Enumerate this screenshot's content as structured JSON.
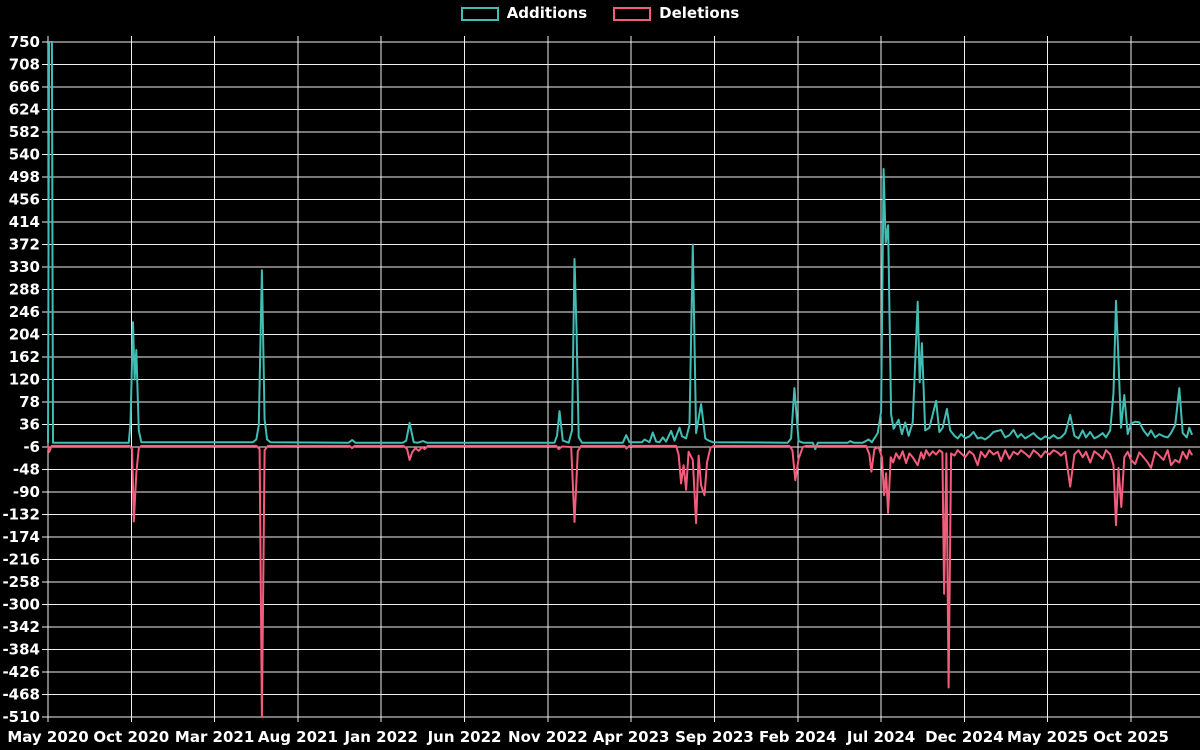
{
  "legend": {
    "additions_label": "Additions",
    "deletions_label": "Deletions"
  },
  "colors": {
    "background": "#000000",
    "grid": "#f0f0f0",
    "text": "#ffffff",
    "additions": "#41bdb4",
    "deletions": "#f45c7c"
  },
  "chart_data": {
    "type": "line",
    "title": "",
    "xlabel": "",
    "ylabel": "",
    "grid": true,
    "legend_position": "top-center",
    "x_axis": {
      "unit": "months since May 2020",
      "range": [
        0,
        69.1
      ],
      "tick_positions": [
        0,
        5,
        10,
        15,
        20,
        25,
        30,
        35,
        40,
        45,
        50,
        55,
        60,
        65
      ],
      "tick_labels": [
        "May 2020",
        "Oct 2020",
        "Mar 2021",
        "Aug 2021",
        "Jan 2022",
        "Jun 2022",
        "Nov 2022",
        "Apr 2023",
        "Sep 2023",
        "Feb 2024",
        "Jul 2024",
        "Dec 2024",
        "May 2025",
        "Oct 2025"
      ]
    },
    "y_axis": {
      "range": [
        -510,
        750
      ],
      "tick_step": 42,
      "ticks": [
        750,
        708,
        666,
        624,
        582,
        540,
        498,
        456,
        414,
        372,
        330,
        288,
        246,
        204,
        162,
        120,
        78,
        36,
        -6,
        -48,
        -90,
        -132,
        -174,
        -216,
        -258,
        -300,
        -342,
        -384,
        -426,
        -468,
        -510
      ]
    },
    "series": [
      {
        "name": "Additions",
        "color": "#41bdb4",
        "points": [
          [
            0,
            2
          ],
          [
            0.08,
            900
          ],
          [
            0.22,
            900
          ],
          [
            0.3,
            2
          ],
          [
            4.85,
            2
          ],
          [
            4.95,
            40
          ],
          [
            5.1,
            227
          ],
          [
            5.2,
            120
          ],
          [
            5.3,
            175
          ],
          [
            5.45,
            25
          ],
          [
            5.6,
            3
          ],
          [
            12.3,
            3
          ],
          [
            12.5,
            8
          ],
          [
            12.65,
            35
          ],
          [
            12.84,
            324
          ],
          [
            13.0,
            45
          ],
          [
            13.15,
            8
          ],
          [
            13.35,
            3
          ],
          [
            18.05,
            2
          ],
          [
            18.25,
            7
          ],
          [
            18.45,
            2
          ],
          [
            21.3,
            2
          ],
          [
            21.5,
            6
          ],
          [
            21.7,
            39
          ],
          [
            21.95,
            3
          ],
          [
            22.2,
            2
          ],
          [
            22.5,
            5
          ],
          [
            22.75,
            2
          ],
          [
            30.4,
            2
          ],
          [
            30.55,
            15
          ],
          [
            30.7,
            61
          ],
          [
            30.9,
            6
          ],
          [
            31.25,
            2
          ],
          [
            31.45,
            25
          ],
          [
            31.6,
            345
          ],
          [
            31.72,
            215
          ],
          [
            31.85,
            12
          ],
          [
            32.05,
            2
          ],
          [
            34.5,
            2
          ],
          [
            34.7,
            16
          ],
          [
            34.9,
            3
          ],
          [
            35.65,
            3
          ],
          [
            35.8,
            8
          ],
          [
            36.1,
            3
          ],
          [
            36.3,
            21
          ],
          [
            36.5,
            4
          ],
          [
            36.7,
            3
          ],
          [
            36.9,
            12
          ],
          [
            37.1,
            4
          ],
          [
            37.4,
            24
          ],
          [
            37.6,
            6
          ],
          [
            37.9,
            30
          ],
          [
            38.05,
            14
          ],
          [
            38.3,
            10
          ],
          [
            38.5,
            35
          ],
          [
            38.7,
            372
          ],
          [
            38.9,
            20
          ],
          [
            39.2,
            74
          ],
          [
            39.45,
            10
          ],
          [
            39.65,
            6
          ],
          [
            39.9,
            3
          ],
          [
            44.4,
            2
          ],
          [
            44.6,
            10
          ],
          [
            44.8,
            104
          ],
          [
            45.05,
            5
          ],
          [
            45.3,
            2
          ],
          [
            45.9,
            2
          ],
          [
            46.05,
            -10
          ],
          [
            46.2,
            2
          ],
          [
            48.0,
            2
          ],
          [
            48.15,
            5
          ],
          [
            48.35,
            2
          ],
          [
            48.9,
            2
          ],
          [
            49.25,
            8
          ],
          [
            49.45,
            3
          ],
          [
            49.8,
            20
          ],
          [
            50.0,
            60
          ],
          [
            50.15,
            513
          ],
          [
            50.28,
            375
          ],
          [
            50.42,
            408
          ],
          [
            50.6,
            55
          ],
          [
            50.75,
            28
          ],
          [
            51.05,
            45
          ],
          [
            51.25,
            18
          ],
          [
            51.45,
            40
          ],
          [
            51.65,
            15
          ],
          [
            51.9,
            40
          ],
          [
            52.2,
            265
          ],
          [
            52.32,
            115
          ],
          [
            52.45,
            188
          ],
          [
            52.65,
            25
          ],
          [
            52.9,
            30
          ],
          [
            53.3,
            80
          ],
          [
            53.5,
            22
          ],
          [
            53.7,
            30
          ],
          [
            53.95,
            65
          ],
          [
            54.15,
            25
          ],
          [
            54.4,
            15
          ],
          [
            54.6,
            10
          ],
          [
            54.8,
            18
          ],
          [
            55.05,
            10
          ],
          [
            55.3,
            14
          ],
          [
            55.55,
            22
          ],
          [
            55.8,
            10
          ],
          [
            56.0,
            12
          ],
          [
            56.25,
            8
          ],
          [
            56.5,
            14
          ],
          [
            56.75,
            22
          ],
          [
            57.0,
            24
          ],
          [
            57.2,
            26
          ],
          [
            57.45,
            12
          ],
          [
            57.7,
            16
          ],
          [
            57.95,
            26
          ],
          [
            58.2,
            12
          ],
          [
            58.4,
            18
          ],
          [
            58.65,
            10
          ],
          [
            58.9,
            15
          ],
          [
            59.15,
            20
          ],
          [
            59.4,
            12
          ],
          [
            59.6,
            8
          ],
          [
            59.85,
            14
          ],
          [
            60.1,
            10
          ],
          [
            60.35,
            16
          ],
          [
            60.6,
            10
          ],
          [
            60.8,
            12
          ],
          [
            61.05,
            20
          ],
          [
            61.35,
            54
          ],
          [
            61.6,
            15
          ],
          [
            61.85,
            10
          ],
          [
            62.1,
            25
          ],
          [
            62.3,
            12
          ],
          [
            62.55,
            22
          ],
          [
            62.8,
            10
          ],
          [
            63.05,
            14
          ],
          [
            63.3,
            20
          ],
          [
            63.5,
            12
          ],
          [
            63.75,
            25
          ],
          [
            63.95,
            95
          ],
          [
            64.1,
            267
          ],
          [
            64.22,
            180
          ],
          [
            64.4,
            30
          ],
          [
            64.6,
            91
          ],
          [
            64.8,
            18
          ],
          [
            65.0,
            38
          ],
          [
            65.25,
            41
          ],
          [
            65.5,
            40
          ],
          [
            65.75,
            25
          ],
          [
            66.0,
            15
          ],
          [
            66.2,
            25
          ],
          [
            66.45,
            12
          ],
          [
            66.7,
            18
          ],
          [
            66.95,
            14
          ],
          [
            67.2,
            12
          ],
          [
            67.4,
            20
          ],
          [
            67.65,
            35
          ],
          [
            67.9,
            104
          ],
          [
            68.1,
            20
          ],
          [
            68.35,
            12
          ],
          [
            68.5,
            30
          ],
          [
            68.65,
            18
          ]
        ]
      },
      {
        "name": "Deletions",
        "color": "#f45c7c",
        "points": [
          [
            0,
            -4
          ],
          [
            0.08,
            -15
          ],
          [
            0.22,
            -4
          ],
          [
            4.9,
            -4
          ],
          [
            5.05,
            -10
          ],
          [
            5.15,
            -145
          ],
          [
            5.3,
            -55
          ],
          [
            5.45,
            -8
          ],
          [
            5.6,
            -4
          ],
          [
            12.5,
            -4
          ],
          [
            12.7,
            -10
          ],
          [
            12.84,
            -510
          ],
          [
            13.0,
            -12
          ],
          [
            13.2,
            -4
          ],
          [
            18.1,
            -4
          ],
          [
            18.25,
            -8
          ],
          [
            18.4,
            -4
          ],
          [
            21.35,
            -4
          ],
          [
            21.55,
            -10
          ],
          [
            21.7,
            -30
          ],
          [
            21.85,
            -16
          ],
          [
            22.05,
            -8
          ],
          [
            22.25,
            -13
          ],
          [
            22.45,
            -6
          ],
          [
            22.6,
            -10
          ],
          [
            22.8,
            -4
          ],
          [
            30.5,
            -4
          ],
          [
            30.65,
            -10
          ],
          [
            30.85,
            -5
          ],
          [
            31.4,
            -6
          ],
          [
            31.6,
            -146
          ],
          [
            31.8,
            -14
          ],
          [
            32.0,
            -4
          ],
          [
            34.6,
            -4
          ],
          [
            34.72,
            -9
          ],
          [
            34.88,
            -4
          ],
          [
            37.7,
            -4
          ],
          [
            37.85,
            -20
          ],
          [
            38.0,
            -74
          ],
          [
            38.15,
            -40
          ],
          [
            38.3,
            -86
          ],
          [
            38.45,
            -15
          ],
          [
            38.7,
            -30
          ],
          [
            38.9,
            -148
          ],
          [
            39.05,
            -22
          ],
          [
            39.2,
            -78
          ],
          [
            39.4,
            -96
          ],
          [
            39.55,
            -35
          ],
          [
            39.75,
            -8
          ],
          [
            39.95,
            -4
          ],
          [
            44.5,
            -4
          ],
          [
            44.68,
            -12
          ],
          [
            44.85,
            -68
          ],
          [
            45.05,
            -28
          ],
          [
            45.3,
            -6
          ],
          [
            45.5,
            -4
          ],
          [
            49.1,
            -4
          ],
          [
            49.3,
            -20
          ],
          [
            49.42,
            -52
          ],
          [
            49.6,
            -10
          ],
          [
            49.85,
            -6
          ],
          [
            50.05,
            -25
          ],
          [
            50.18,
            -96
          ],
          [
            50.3,
            -55
          ],
          [
            50.42,
            -129
          ],
          [
            50.58,
            -25
          ],
          [
            50.72,
            -35
          ],
          [
            50.9,
            -18
          ],
          [
            51.1,
            -28
          ],
          [
            51.3,
            -14
          ],
          [
            51.5,
            -36
          ],
          [
            51.7,
            -18
          ],
          [
            51.9,
            -25
          ],
          [
            52.2,
            -40
          ],
          [
            52.4,
            -16
          ],
          [
            52.55,
            -28
          ],
          [
            52.7,
            -12
          ],
          [
            52.9,
            -22
          ],
          [
            53.1,
            -14
          ],
          [
            53.3,
            -20
          ],
          [
            53.5,
            -12
          ],
          [
            53.68,
            -16
          ],
          [
            53.78,
            -280
          ],
          [
            53.92,
            -18
          ],
          [
            54.05,
            -455
          ],
          [
            54.2,
            -18
          ],
          [
            54.4,
            -22
          ],
          [
            54.6,
            -12
          ],
          [
            54.8,
            -18
          ],
          [
            55.05,
            -25
          ],
          [
            55.3,
            -14
          ],
          [
            55.55,
            -20
          ],
          [
            55.8,
            -40
          ],
          [
            56.0,
            -15
          ],
          [
            56.25,
            -25
          ],
          [
            56.5,
            -12
          ],
          [
            56.75,
            -20
          ],
          [
            57.0,
            -15
          ],
          [
            57.2,
            -32
          ],
          [
            57.45,
            -12
          ],
          [
            57.7,
            -28
          ],
          [
            57.95,
            -15
          ],
          [
            58.2,
            -20
          ],
          [
            58.4,
            -12
          ],
          [
            58.65,
            -18
          ],
          [
            58.9,
            -25
          ],
          [
            59.15,
            -12
          ],
          [
            59.4,
            -18
          ],
          [
            59.6,
            -25
          ],
          [
            59.85,
            -14
          ],
          [
            60.1,
            -20
          ],
          [
            60.35,
            -12
          ],
          [
            60.6,
            -16
          ],
          [
            60.8,
            -22
          ],
          [
            61.05,
            -15
          ],
          [
            61.35,
            -80
          ],
          [
            61.6,
            -20
          ],
          [
            61.85,
            -12
          ],
          [
            62.1,
            -25
          ],
          [
            62.3,
            -15
          ],
          [
            62.55,
            -35
          ],
          [
            62.8,
            -14
          ],
          [
            63.05,
            -20
          ],
          [
            63.3,
            -28
          ],
          [
            63.5,
            -12
          ],
          [
            63.75,
            -20
          ],
          [
            63.95,
            -40
          ],
          [
            64.1,
            -152
          ],
          [
            64.25,
            -45
          ],
          [
            64.42,
            -118
          ],
          [
            64.6,
            -25
          ],
          [
            64.8,
            -15
          ],
          [
            65.0,
            -30
          ],
          [
            65.25,
            -38
          ],
          [
            65.5,
            -16
          ],
          [
            65.75,
            -25
          ],
          [
            66.0,
            -35
          ],
          [
            66.2,
            -45
          ],
          [
            66.45,
            -15
          ],
          [
            66.7,
            -22
          ],
          [
            66.95,
            -30
          ],
          [
            67.2,
            -12
          ],
          [
            67.4,
            -40
          ],
          [
            67.65,
            -30
          ],
          [
            67.9,
            -35
          ],
          [
            68.1,
            -15
          ],
          [
            68.35,
            -28
          ],
          [
            68.5,
            -12
          ],
          [
            68.65,
            -20
          ]
        ]
      }
    ]
  }
}
